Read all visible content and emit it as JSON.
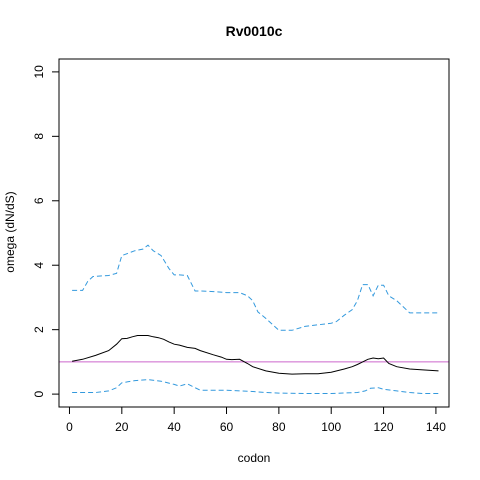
{
  "chart_data": {
    "type": "line",
    "title": "Rv0010c",
    "xlabel": "codon",
    "ylabel": "omega (dN/dS)",
    "xlim": [
      -4,
      145
    ],
    "ylim": [
      -0.4,
      10.4
    ],
    "x_ticks": [
      0,
      20,
      40,
      60,
      80,
      100,
      120,
      140
    ],
    "y_ticks": [
      0,
      2,
      4,
      6,
      8,
      10
    ],
    "grid": false,
    "legend": "none",
    "reference_line": {
      "y": 1,
      "color": "#cc66cc"
    },
    "series": [
      {
        "style": "solid",
        "color": "#000000",
        "x": [
          1,
          5,
          10,
          15,
          18,
          20,
          22,
          24,
          26,
          28,
          30,
          32,
          34,
          36,
          38,
          40,
          42,
          45,
          48,
          50,
          55,
          58,
          60,
          62,
          65,
          68,
          70,
          75,
          80,
          85,
          90,
          95,
          100,
          105,
          108,
          110,
          112,
          114,
          116,
          118,
          120,
          122,
          125,
          130,
          135,
          141
        ],
        "y": [
          1.02,
          1.08,
          1.2,
          1.35,
          1.55,
          1.72,
          1.73,
          1.78,
          1.82,
          1.82,
          1.82,
          1.78,
          1.75,
          1.7,
          1.62,
          1.55,
          1.52,
          1.45,
          1.42,
          1.35,
          1.22,
          1.15,
          1.08,
          1.07,
          1.08,
          0.95,
          0.85,
          0.72,
          0.65,
          0.62,
          0.63,
          0.63,
          0.68,
          0.78,
          0.85,
          0.92,
          1.0,
          1.08,
          1.12,
          1.1,
          1.12,
          0.95,
          0.85,
          0.78,
          0.75,
          0.72
        ]
      },
      {
        "style": "dashed",
        "color": "#3399dd",
        "x": [
          1,
          5,
          7,
          9,
          15,
          18,
          20,
          25,
          28,
          30,
          32,
          35,
          38,
          40,
          42,
          45,
          48,
          50,
          55,
          60,
          65,
          68,
          70,
          72,
          75,
          80,
          85,
          90,
          95,
          100,
          102,
          105,
          108,
          110,
          112,
          114,
          116,
          118,
          120,
          122,
          125,
          130,
          135,
          141
        ],
        "y": [
          3.22,
          3.22,
          3.5,
          3.65,
          3.68,
          3.75,
          4.3,
          4.45,
          4.5,
          4.62,
          4.45,
          4.3,
          3.9,
          3.7,
          3.7,
          3.68,
          3.2,
          3.2,
          3.18,
          3.15,
          3.15,
          3.05,
          2.9,
          2.55,
          2.35,
          1.98,
          1.98,
          2.1,
          2.15,
          2.2,
          2.25,
          2.45,
          2.62,
          2.9,
          3.4,
          3.4,
          3.05,
          3.38,
          3.38,
          3.05,
          2.9,
          2.52,
          2.52,
          2.52
        ]
      },
      {
        "style": "dashed",
        "color": "#3399dd",
        "x": [
          1,
          10,
          15,
          18,
          20,
          25,
          30,
          35,
          40,
          42,
          45,
          48,
          50,
          60,
          65,
          70,
          75,
          80,
          90,
          100,
          110,
          113,
          115,
          118,
          120,
          125,
          130,
          135,
          141
        ],
        "y": [
          0.05,
          0.05,
          0.1,
          0.2,
          0.35,
          0.42,
          0.45,
          0.4,
          0.3,
          0.25,
          0.32,
          0.2,
          0.12,
          0.12,
          0.1,
          0.08,
          0.05,
          0.03,
          0.02,
          0.02,
          0.05,
          0.1,
          0.18,
          0.2,
          0.15,
          0.1,
          0.05,
          0.02,
          0.02
        ]
      }
    ]
  }
}
